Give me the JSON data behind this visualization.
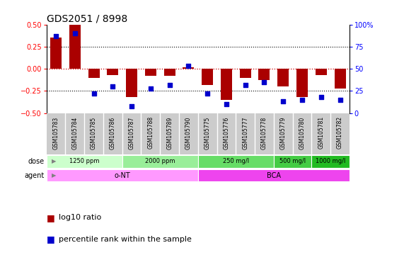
{
  "title": "GDS2051 / 8998",
  "samples": [
    "GSM105783",
    "GSM105784",
    "GSM105785",
    "GSM105786",
    "GSM105787",
    "GSM105788",
    "GSM105789",
    "GSM105790",
    "GSM105775",
    "GSM105776",
    "GSM105777",
    "GSM105778",
    "GSM105779",
    "GSM105780",
    "GSM105781",
    "GSM105782"
  ],
  "log10_ratio": [
    0.35,
    0.5,
    -0.1,
    -0.07,
    -0.32,
    -0.08,
    -0.08,
    0.02,
    -0.18,
    -0.35,
    -0.1,
    -0.13,
    -0.2,
    -0.32,
    -0.07,
    -0.22
  ],
  "percentile": [
    87,
    90,
    22,
    30,
    8,
    28,
    32,
    53,
    22,
    10,
    32,
    35,
    13,
    15,
    18,
    15
  ],
  "dose_groups": [
    {
      "label": "1250 ppm",
      "start": 0,
      "end": 4,
      "color": "#ccffcc"
    },
    {
      "label": "2000 ppm",
      "start": 4,
      "end": 8,
      "color": "#99ee99"
    },
    {
      "label": "250 mg/l",
      "start": 8,
      "end": 12,
      "color": "#66dd66"
    },
    {
      "label": "500 mg/l",
      "start": 12,
      "end": 14,
      "color": "#44cc44"
    },
    {
      "label": "1000 mg/l",
      "start": 14,
      "end": 16,
      "color": "#22bb22"
    }
  ],
  "agent_groups": [
    {
      "label": "o-NT",
      "start": 0,
      "end": 8,
      "color": "#ff99ff"
    },
    {
      "label": "BCA",
      "start": 8,
      "end": 16,
      "color": "#ee44ee"
    }
  ],
  "bar_color": "#aa0000",
  "dot_color": "#0000cc",
  "ylim": [
    -0.5,
    0.5
  ],
  "yticks": [
    -0.5,
    -0.25,
    0.0,
    0.25,
    0.5
  ],
  "right_yticks": [
    0,
    25,
    50,
    75,
    100
  ],
  "background_color": "#ffffff",
  "xlabel_bg": "#cccccc",
  "legend_bar_label": "log10 ratio",
  "legend_dot_label": "percentile rank within the sample",
  "title_fontsize": 10,
  "tick_fontsize": 7,
  "label_fontsize": 8,
  "legend_fontsize": 8
}
